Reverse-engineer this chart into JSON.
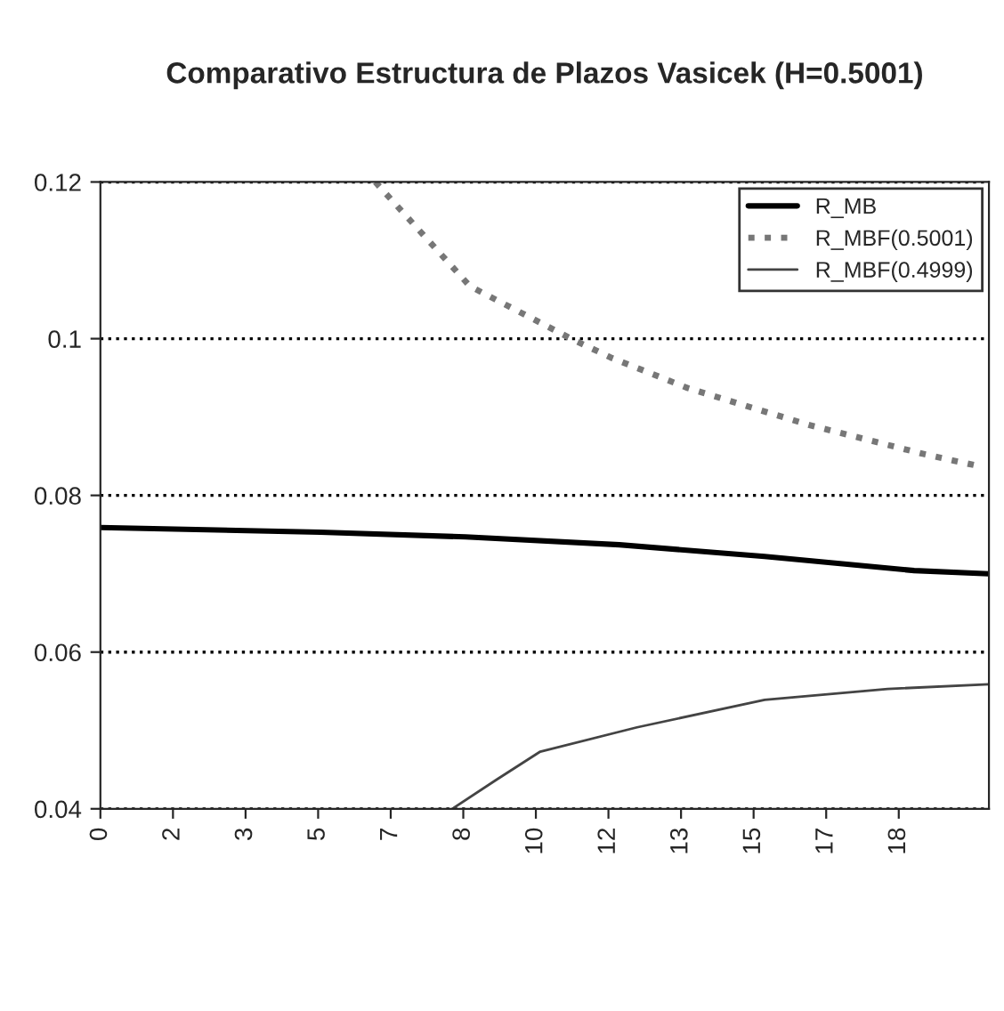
{
  "chart_data": {
    "type": "line",
    "title": "Comparativo Estructura de Plazos Vasicek (H=0.5001)",
    "xlim": [
      0,
      20.2
    ],
    "xticks": [
      {
        "value": 0,
        "label": "0"
      },
      {
        "value": 1.65,
        "label": "2"
      },
      {
        "value": 3.3,
        "label": "3"
      },
      {
        "value": 4.95,
        "label": "5"
      },
      {
        "value": 6.6,
        "label": "7"
      },
      {
        "value": 8.25,
        "label": "8"
      },
      {
        "value": 9.9,
        "label": "10"
      },
      {
        "value": 11.55,
        "label": "12"
      },
      {
        "value": 13.2,
        "label": "13"
      },
      {
        "value": 14.85,
        "label": "15"
      },
      {
        "value": 16.5,
        "label": "17"
      },
      {
        "value": 18.15,
        "label": "18"
      }
    ],
    "ylim": [
      0.04,
      0.12
    ],
    "yticks": [
      0.04,
      0.06,
      0.08,
      0.1,
      0.12
    ],
    "grid": "y",
    "legend": "top right",
    "series": [
      {
        "name": "R_MB",
        "color": "#000000",
        "line_style": "solid",
        "x": [
          0,
          5.0,
          8.3,
          11.8,
          15.1,
          18.5,
          20.2
        ],
        "values": [
          0.0759,
          0.0753,
          0.0747,
          0.0737,
          0.0722,
          0.0704,
          0.07
        ]
      },
      {
        "name": "R_MBF(0.5001)",
        "color": "#777777",
        "line_style": "dotted",
        "x": [
          6.25,
          8.4,
          10.7,
          11.6,
          13.35,
          16.1,
          18.7,
          20.0
        ],
        "values": [
          0.12,
          0.1067,
          0.1,
          0.0976,
          0.0937,
          0.089,
          0.0853,
          0.0837
        ]
      },
      {
        "name": "R_MBF(0.4999)",
        "color": "#444444",
        "line_style": "solid",
        "x": [
          8.0,
          9.0,
          10.0,
          12.2,
          15.1,
          17.9,
          20.2
        ],
        "values": [
          0.04,
          0.0437,
          0.0473,
          0.0504,
          0.0539,
          0.0553,
          0.0559
        ]
      }
    ]
  }
}
